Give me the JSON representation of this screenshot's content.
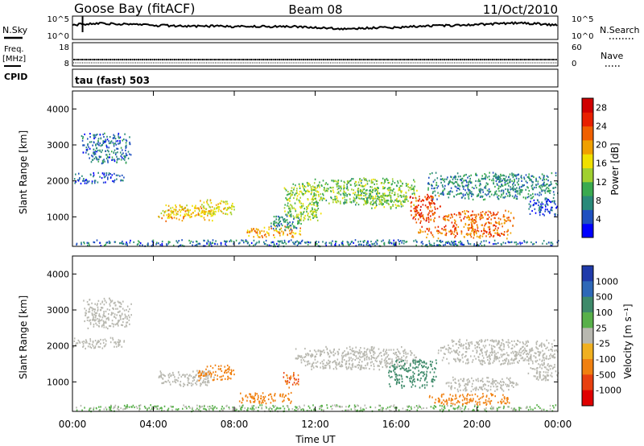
{
  "header": {
    "station": "Goose Bay (fitACF)",
    "beam": "Beam 08",
    "date": "11/Oct/2010"
  },
  "left_labels": {
    "nsky": "N.Sky",
    "freq_line1": "Freq.",
    "freq_line2": "[MHz]",
    "cpid": "CPID"
  },
  "right_labels": {
    "nsearch": "N.Search",
    "nave": "Nave"
  },
  "cpid_text": "tau (fast) 503",
  "colors": {
    "power_scale": [
      "#0000ff",
      "#1e50c0",
      "#2a8a7a",
      "#3aaa50",
      "#a0d030",
      "#f0e000",
      "#f0a000",
      "#f06000",
      "#e82000",
      "#d00000"
    ],
    "velocity_scale": [
      "#1f3aaa",
      "#2e68b8",
      "#3e8a6a",
      "#58b04a",
      "#c0c0c0",
      "#c0c0c0",
      "#f0b020",
      "#f08010",
      "#e84010",
      "#e00000"
    ],
    "ground_scatter": "#b8b8b0",
    "line": "#000000"
  },
  "chart_data": [
    {
      "type": "line",
      "panel": "noise",
      "left_ticks": [
        "10^5",
        "10^0"
      ],
      "right_ticks": [
        "10^5",
        "10^0"
      ],
      "series": [
        {
          "name": "N.Sky",
          "x_hours": [
            0,
            1,
            2,
            3,
            4,
            5,
            6,
            7,
            8,
            9,
            10,
            11,
            12,
            13,
            14,
            15,
            16,
            17,
            18,
            19,
            20,
            21,
            22,
            23,
            24
          ],
          "log10_values": [
            3.2,
            3.6,
            3.5,
            3.3,
            3.1,
            3.0,
            2.9,
            2.9,
            2.8,
            2.8,
            2.8,
            2.8,
            2.6,
            2.3,
            2.3,
            2.5,
            2.6,
            2.8,
            3.0,
            3.1,
            3.3,
            3.5,
            3.7,
            3.5,
            3.1
          ]
        }
      ]
    },
    {
      "type": "line",
      "panel": "frequency",
      "left_ticks": [
        "18",
        "8"
      ],
      "right_ticks": [
        "60",
        "0"
      ],
      "series": [
        {
          "name": "Freq.",
          "unit": "MHz",
          "constant": 10.2
        },
        {
          "name": "Nave",
          "constant": 20
        }
      ]
    },
    {
      "type": "heatmap",
      "panel": "power",
      "ylabel": "Slant Range [km]",
      "yticks": [
        "1000",
        "2000",
        "3000",
        "4000"
      ],
      "ylim": [
        180,
        4500
      ],
      "xlim_hours": [
        0,
        24
      ],
      "colorbar_label": "Power [dB]",
      "colorbar_ticks": [
        "4",
        "8",
        "12",
        "16",
        "20",
        "24",
        "28"
      ],
      "colorbar_range": [
        0,
        30
      ],
      "patches": [
        {
          "t": [
            0.4,
            2.9
          ],
          "r": [
            2500,
            3350
          ],
          "v": 6
        },
        {
          "t": [
            0.0,
            2.6
          ],
          "r": [
            1950,
            2250
          ],
          "v": 5
        },
        {
          "t": [
            0.0,
            24.0
          ],
          "r": [
            200,
            380
          ],
          "v": 6
        },
        {
          "t": [
            4.2,
            7.0
          ],
          "r": [
            900,
            1350
          ],
          "v": 18
        },
        {
          "t": [
            6.2,
            8.0
          ],
          "r": [
            1050,
            1500
          ],
          "v": 16
        },
        {
          "t": [
            8.6,
            11.3
          ],
          "r": [
            450,
            760
          ],
          "v": 20
        },
        {
          "t": [
            9.7,
            11.3
          ],
          "r": [
            650,
            1100
          ],
          "v": 8
        },
        {
          "t": [
            10.4,
            12.3
          ],
          "r": [
            900,
            2000
          ],
          "v": 13
        },
        {
          "t": [
            11.8,
            17.0
          ],
          "r": [
            1350,
            2100
          ],
          "v": 12
        },
        {
          "t": [
            14.4,
            16.6
          ],
          "r": [
            1250,
            1700
          ],
          "v": 12
        },
        {
          "t": [
            16.6,
            18.2
          ],
          "r": [
            850,
            1650
          ],
          "v": 24
        },
        {
          "t": [
            17.0,
            21.8
          ],
          "r": [
            420,
            760
          ],
          "v": 22
        },
        {
          "t": [
            18.2,
            21.8
          ],
          "r": [
            750,
            1200
          ],
          "v": 22
        },
        {
          "t": [
            17.5,
            24.0
          ],
          "r": [
            1500,
            2250
          ],
          "v": 8
        },
        {
          "t": [
            22.5,
            24.0
          ],
          "r": [
            1050,
            1550
          ],
          "v": 5
        }
      ]
    },
    {
      "type": "heatmap",
      "panel": "velocity",
      "ylabel": "Slant Range [km]",
      "yticks": [
        "1000",
        "2000",
        "3000",
        "4000"
      ],
      "ylim": [
        180,
        4500
      ],
      "xlabel": "Time UT",
      "xticks": [
        "00:00",
        "04:00",
        "08:00",
        "12:00",
        "16:00",
        "20:00",
        "00:00"
      ],
      "xlim_hours": [
        0,
        24
      ],
      "colorbar_label": "Velocity [m s⁻¹]",
      "colorbar_ticks": [
        "1000",
        "500",
        "100",
        "25",
        "-25",
        "-100",
        "-500",
        "-1000"
      ],
      "patches": [
        {
          "t": [
            0.5,
            2.9
          ],
          "r": [
            2500,
            3350
          ],
          "v": 0
        },
        {
          "t": [
            0.0,
            2.6
          ],
          "r": [
            1950,
            2250
          ],
          "v": 0
        },
        {
          "t": [
            0.0,
            24.0
          ],
          "r": [
            200,
            380
          ],
          "v": 30
        },
        {
          "t": [
            4.2,
            7.0
          ],
          "r": [
            900,
            1350
          ],
          "v": 0
        },
        {
          "t": [
            6.2,
            8.0
          ],
          "r": [
            1050,
            1500
          ],
          "v": -200
        },
        {
          "t": [
            8.2,
            10.8
          ],
          "r": [
            420,
            720
          ],
          "v": -150
        },
        {
          "t": [
            10.4,
            11.2
          ],
          "r": [
            850,
            1300
          ],
          "v": -300
        },
        {
          "t": [
            11.0,
            17.0
          ],
          "r": [
            1350,
            2000
          ],
          "v": 0
        },
        {
          "t": [
            15.6,
            18.0
          ],
          "r": [
            850,
            1650
          ],
          "v": 80
        },
        {
          "t": [
            17.6,
            21.6
          ],
          "r": [
            380,
            700
          ],
          "v": -120
        },
        {
          "t": [
            18.4,
            22.0
          ],
          "r": [
            750,
            1150
          ],
          "v": 0
        },
        {
          "t": [
            18.0,
            24.0
          ],
          "r": [
            1500,
            2200
          ],
          "v": 0
        },
        {
          "t": [
            22.5,
            24.0
          ],
          "r": [
            1050,
            1550
          ],
          "v": 0
        }
      ]
    }
  ]
}
